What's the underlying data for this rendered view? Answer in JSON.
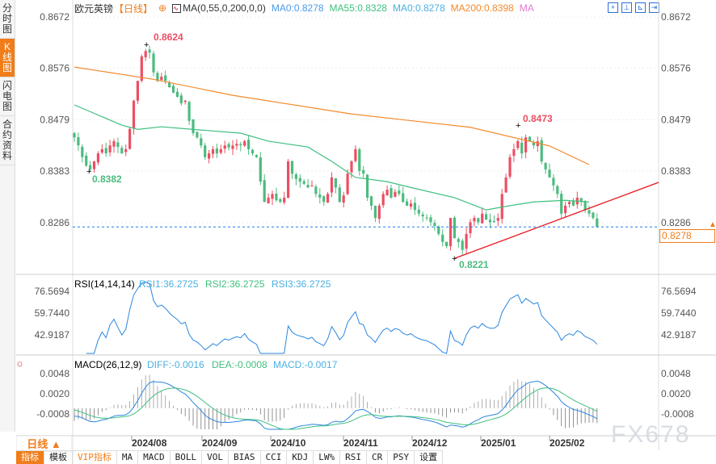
{
  "sidebar": {
    "tabs": [
      {
        "label": "分时图"
      },
      {
        "label": "K线图",
        "active": true
      },
      {
        "label": "闪电图"
      },
      {
        "label": "合约资料"
      }
    ]
  },
  "header": {
    "symbol": "欧元英镑",
    "period": "【日线】",
    "ma_setting": "MA(0,55,0,200,0,0)",
    "ma0": "MA0:0.8278",
    "ma55": "MA55:0.8328",
    "ma0b": "MA0:0.8278",
    "ma200": "MA200:0.8398",
    "ma_extra": "MA"
  },
  "colors": {
    "up": "#ec4f63",
    "down": "#4cbb7f",
    "ma55": "#3fbf7f",
    "ma200": "#f38a2c",
    "trend": "#e8161b",
    "last": "#1b7ff0",
    "accent": "#f07d1a"
  },
  "price_axis": [
    "0.8672",
    "0.8576",
    "0.8479",
    "0.8383",
    "0.8286"
  ],
  "last_price": "0.8278",
  "annotations": {
    "high": "0.8624",
    "low1": "0.8382",
    "low2": "0.8221",
    "high2": "0.8473"
  },
  "rsi": {
    "title": "RSI(14,14,14)",
    "rsi1": "RSI1:36.2725",
    "rsi2": "RSI2:36.2725",
    "rsi3": "RSI3:36.2725",
    "axis": [
      "76.5694",
      "59.7440",
      "42.9187"
    ]
  },
  "macd": {
    "title": "MACD(26,12,9)",
    "diff": "DIFF:-0.0016",
    "dea": "DEA:-0.0008",
    "macd": "MACD:-0.0017",
    "axis": [
      "0.0048",
      "0.0020",
      "-0.0008"
    ]
  },
  "x_axis": [
    "2024/08",
    "2024/09",
    "2024/10",
    "2024/11",
    "2024/12",
    "2025/01",
    "2025/02"
  ],
  "period_button": "日线 ▲",
  "bottom_tabs": [
    "指标",
    "模板",
    "VIP指标",
    "MA",
    "MACD",
    "BOLL",
    "VOL",
    "BIAS",
    "CCI",
    "KDJ",
    "LW%",
    "RSI",
    "CR",
    "PSY",
    "设置"
  ],
  "watermark": "FX678",
  "chart_data": {
    "type": "candlestick",
    "closes": [
      0.8446,
      0.8431,
      0.8409,
      0.8393,
      0.8386,
      0.8401,
      0.8416,
      0.8424,
      0.8416,
      0.8431,
      0.8439,
      0.8428,
      0.8416,
      0.8424,
      0.8462,
      0.8515,
      0.8552,
      0.8598,
      0.8608,
      0.8605,
      0.8568,
      0.8552,
      0.856,
      0.8552,
      0.854,
      0.853,
      0.8522,
      0.851,
      0.8515,
      0.8477,
      0.8454,
      0.8446,
      0.8431,
      0.8409,
      0.8416,
      0.8424,
      0.8416,
      0.8424,
      0.8431,
      0.8427,
      0.8431,
      0.8434,
      0.8431,
      0.8439,
      0.8424,
      0.8416,
      0.8409,
      0.8363,
      0.8325,
      0.8333,
      0.834,
      0.8328,
      0.8325,
      0.8333,
      0.8401,
      0.8378,
      0.8368,
      0.8363,
      0.8359,
      0.8352,
      0.8356,
      0.834,
      0.8333,
      0.8325,
      0.834,
      0.8371,
      0.8352,
      0.8325,
      0.8337,
      0.8378,
      0.8401,
      0.8424,
      0.8383,
      0.8378,
      0.8333,
      0.8318,
      0.8295,
      0.8318,
      0.834,
      0.8348,
      0.8333,
      0.8344,
      0.834,
      0.8325,
      0.8318,
      0.8322,
      0.831,
      0.8303,
      0.8298,
      0.8295,
      0.8287,
      0.828,
      0.8265,
      0.825,
      0.8242,
      0.8295,
      0.8257,
      0.825,
      0.8235,
      0.8265,
      0.8287,
      0.8295,
      0.8287,
      0.8303,
      0.8292,
      0.8287,
      0.8287,
      0.8295,
      0.834,
      0.8371,
      0.8409,
      0.8424,
      0.8439,
      0.8416,
      0.8446,
      0.8439,
      0.8431,
      0.8439,
      0.8401,
      0.8386,
      0.8371,
      0.8356,
      0.834,
      0.8303,
      0.8318,
      0.8325,
      0.8318,
      0.8333,
      0.8325,
      0.831,
      0.8303,
      0.8295,
      0.8278
    ],
    "ma55": [
      [
        0,
        0.8507
      ],
      [
        12,
        0.8469
      ],
      [
        16,
        0.8461
      ],
      [
        22,
        0.8466
      ],
      [
        30,
        0.8461
      ],
      [
        42,
        0.8454
      ],
      [
        49,
        0.8439
      ],
      [
        59,
        0.8428
      ],
      [
        65,
        0.8401
      ],
      [
        71,
        0.8371
      ],
      [
        79,
        0.8363
      ],
      [
        85,
        0.8352
      ],
      [
        96,
        0.8333
      ],
      [
        104,
        0.831
      ],
      [
        110,
        0.8318
      ],
      [
        116,
        0.8325
      ],
      [
        124,
        0.8328
      ],
      [
        130,
        0.8325
      ]
    ],
    "ma200": [
      [
        0,
        0.8578
      ],
      [
        20,
        0.8555
      ],
      [
        40,
        0.8525
      ],
      [
        70,
        0.849
      ],
      [
        100,
        0.8465
      ],
      [
        120,
        0.843
      ],
      [
        130,
        0.8395
      ]
    ],
    "ylim": [
      0.82,
      0.868
    ]
  }
}
